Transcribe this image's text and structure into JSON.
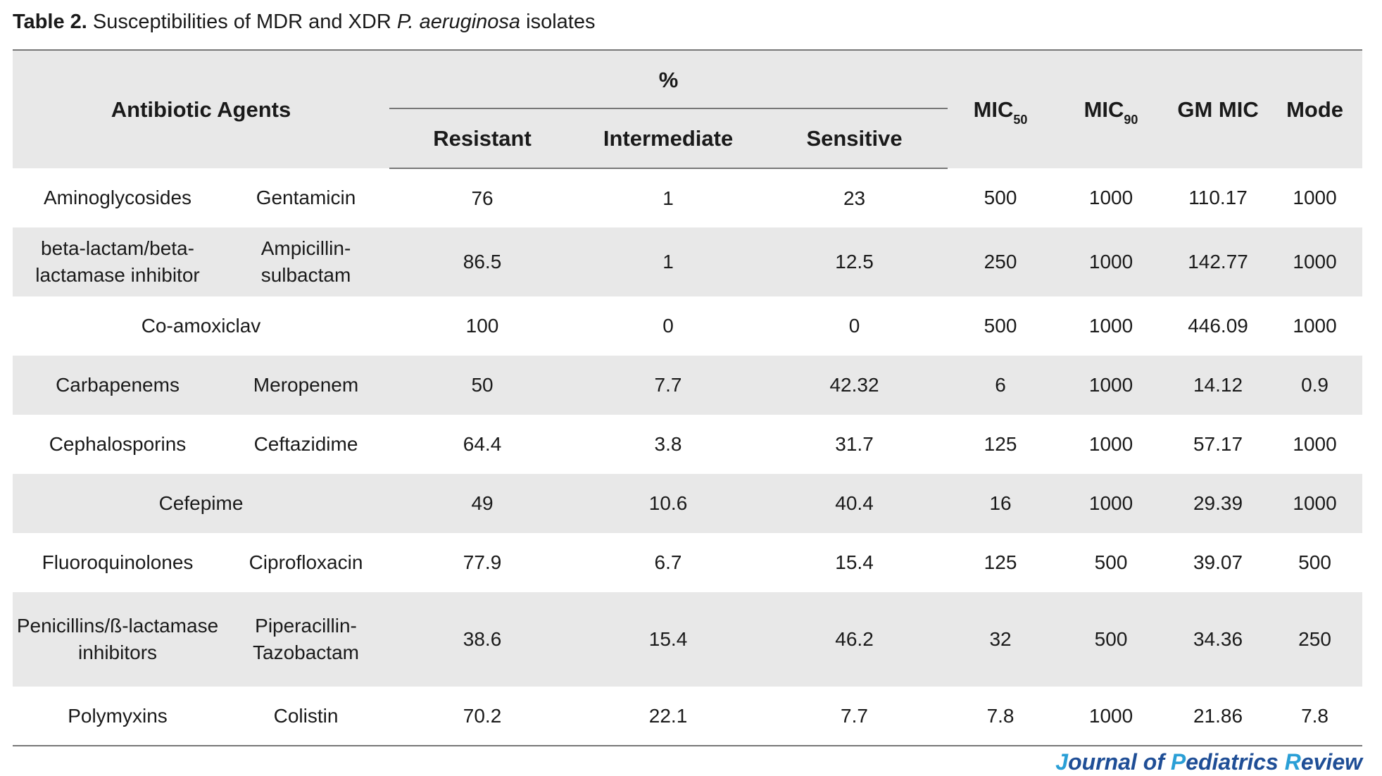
{
  "caption": {
    "label": "Table 2.",
    "text_before": " Susceptibilities of MDR and XDR ",
    "species": "P. aeruginosa",
    "text_after": " isolates"
  },
  "header": {
    "agents": "Antibiotic Agents",
    "percent": "%",
    "resistant": "Resistant",
    "intermediate": "Intermediate",
    "sensitive": "Sensitive",
    "mic50_main": "MIC",
    "mic50_sub": "50",
    "mic90_main": "MIC",
    "mic90_sub": "90",
    "gm_mic": "GM MIC",
    "mode": "Mode"
  },
  "rows": [
    {
      "class_name": "Aminoglycosides",
      "agent": "Gentamicin",
      "resistant": "76",
      "intermediate": "1",
      "sensitive": "23",
      "mic50": "500",
      "mic90": "1000",
      "gm_mic": "110.17",
      "mode": "1000"
    },
    {
      "class_name": "beta-lactam/beta-lactamase inhibitor",
      "agent": "Ampicillin-sulbactam",
      "resistant": "86.5",
      "intermediate": "1",
      "sensitive": "12.5",
      "mic50": "250",
      "mic90": "1000",
      "gm_mic": "142.77",
      "mode": "1000"
    },
    {
      "merged": "Co-amoxiclav",
      "resistant": "100",
      "intermediate": "0",
      "sensitive": "0",
      "mic50": "500",
      "mic90": "1000",
      "gm_mic": "446.09",
      "mode": "1000"
    },
    {
      "class_name": "Carbapenems",
      "agent": "Meropenem",
      "resistant": "50",
      "intermediate": "7.7",
      "sensitive": "42.32",
      "mic50": "6",
      "mic90": "1000",
      "gm_mic": "14.12",
      "mode": "0.9"
    },
    {
      "class_name": "Cephalosporins",
      "agent": "Ceftazidime",
      "resistant": "64.4",
      "intermediate": "3.8",
      "sensitive": "31.7",
      "mic50": "125",
      "mic90": "1000",
      "gm_mic": "57.17",
      "mode": "1000"
    },
    {
      "merged": "Cefepime",
      "resistant": "49",
      "intermediate": "10.6",
      "sensitive": "40.4",
      "mic50": "16",
      "mic90": "1000",
      "gm_mic": "29.39",
      "mode": "1000"
    },
    {
      "class_name": "Fluoroquinolones",
      "agent": "Ciprofloxacin",
      "resistant": "77.9",
      "intermediate": "6.7",
      "sensitive": "15.4",
      "mic50": "125",
      "mic90": "500",
      "gm_mic": "39.07",
      "mode": "500"
    },
    {
      "class_name": "Penicillins/ß-lactamase inhibitors",
      "agent": "Piperacillin-Tazobactam",
      "resistant": "38.6",
      "intermediate": "15.4",
      "sensitive": "46.2",
      "mic50": "32",
      "mic90": "500",
      "gm_mic": "34.36",
      "mode": "250"
    },
    {
      "class_name": "Polymyxins",
      "agent": "Colistin",
      "resistant": "70.2",
      "intermediate": "22.1",
      "sensitive": "7.7",
      "mic50": "7.8",
      "mic90": "1000",
      "gm_mic": "21.86",
      "mode": "7.8"
    }
  ],
  "footer": {
    "j_cap": "J",
    "j_rest": "ournal of ",
    "p_cap": "P",
    "p_rest": "ediatrics ",
    "r_cap": "R",
    "r_rest": "eview"
  }
}
